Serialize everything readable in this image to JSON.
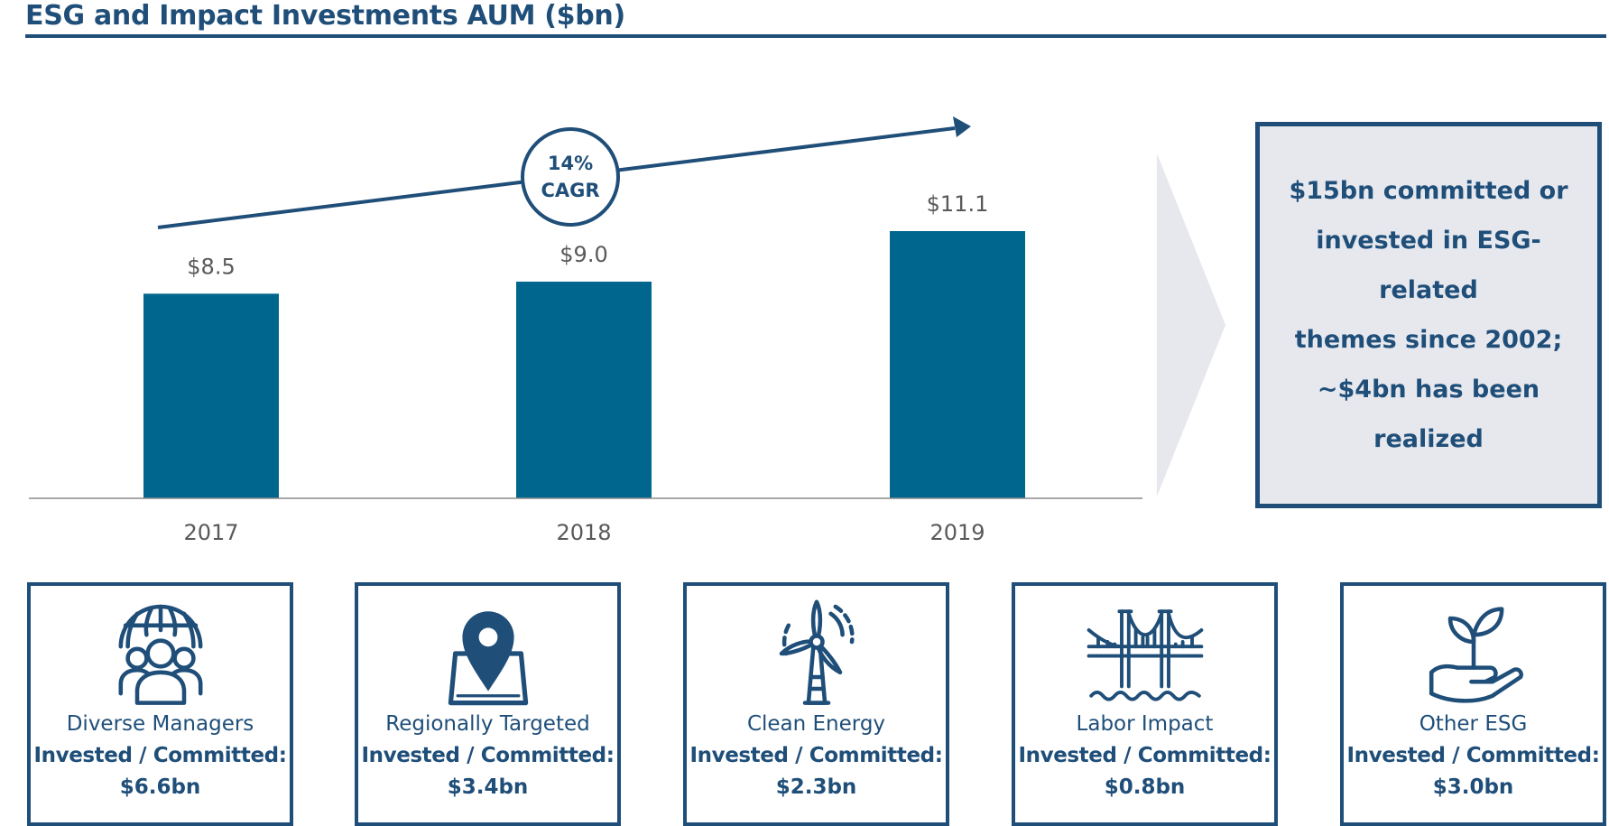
{
  "title": "ESG and Impact Investments AUM ($bn)",
  "colors": {
    "brand": "#1f4e79",
    "bar": "#00668e",
    "panel": "#e6e8ee",
    "label": "#595959"
  },
  "chart_data": {
    "type": "bar",
    "title": "ESG and Impact Investments AUM ($bn)",
    "categories": [
      "2017",
      "2018",
      "2019"
    ],
    "values": [
      8.5,
      9.0,
      11.1
    ],
    "value_labels": [
      "$8.5",
      "$9.0",
      "$11.1"
    ],
    "xlabel": "",
    "ylabel": "",
    "ylim": [
      0,
      13
    ],
    "annotation": {
      "line1": "14%",
      "line2": "CAGR"
    }
  },
  "summary": {
    "lines": [
      "$15bn committed or",
      "invested in ESG-related",
      "themes since 2002;",
      "~$4bn has been realized"
    ]
  },
  "cards": [
    {
      "icon": "globe-people-icon",
      "category": "Diverse Managers",
      "label": "Invested / Committed:",
      "amount": "$6.6bn"
    },
    {
      "icon": "map-pin-icon",
      "category": "Regionally Targeted",
      "label": "Invested / Committed:",
      "amount": "$3.4bn"
    },
    {
      "icon": "wind-turbine-icon",
      "category": "Clean Energy",
      "label": "Invested / Committed:",
      "amount": "$2.3bn"
    },
    {
      "icon": "bridge-icon",
      "category": "Labor Impact",
      "label": "Invested / Committed:",
      "amount": "$0.8bn"
    },
    {
      "icon": "hand-plant-icon",
      "category": "Other ESG",
      "label": "Invested / Committed:",
      "amount": "$3.0bn"
    }
  ]
}
